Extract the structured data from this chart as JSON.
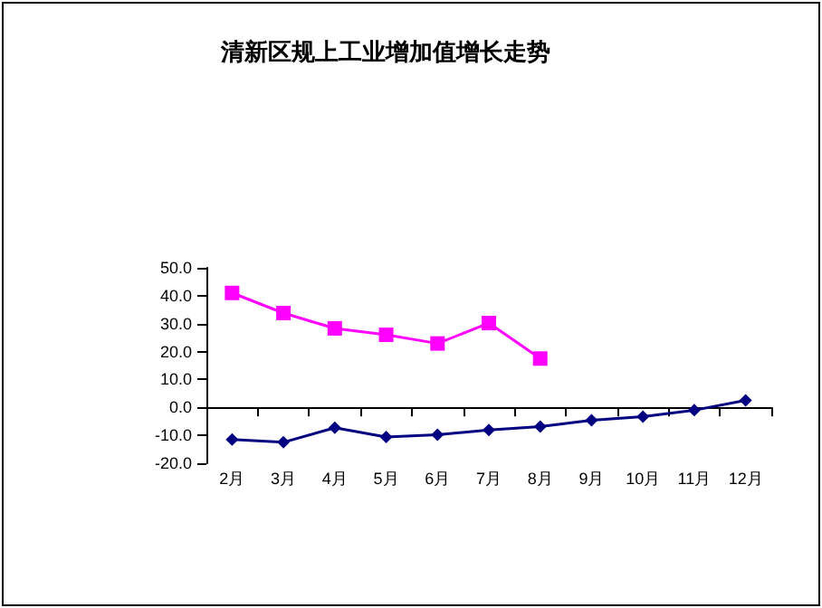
{
  "chart_data": {
    "type": "line",
    "title": "清新区规上工业增加值增长走势",
    "categories": [
      "2月",
      "3月",
      "4月",
      "5月",
      "6月",
      "7月",
      "8月",
      "9月",
      "10月",
      "11月",
      "12月"
    ],
    "series": [
      {
        "color": "#000080",
        "marker": "diamond",
        "values": [
          -11.5,
          -12.5,
          -7.3,
          -10.6,
          -9.8,
          -8.1,
          -6.9,
          -4.6,
          -3.3,
          -1.0,
          2.5
        ]
      },
      {
        "color": "#ff00ff",
        "marker": "square",
        "values": [
          41.0,
          33.8,
          28.3,
          26.0,
          22.9,
          30.2,
          17.5,
          null,
          null,
          null,
          null
        ]
      }
    ],
    "ylim": [
      -20,
      50
    ],
    "yticks": [
      {
        "value": -20,
        "label": "-20.0"
      },
      {
        "value": -10,
        "label": "-10.0"
      },
      {
        "value": 0,
        "label": "0.0"
      },
      {
        "value": 10,
        "label": "10.0"
      },
      {
        "value": 20,
        "label": "20.0"
      },
      {
        "value": 30,
        "label": "30.0"
      },
      {
        "value": 40,
        "label": "40.0"
      },
      {
        "value": 50,
        "label": "50.0"
      }
    ],
    "line_style": "solid"
  }
}
